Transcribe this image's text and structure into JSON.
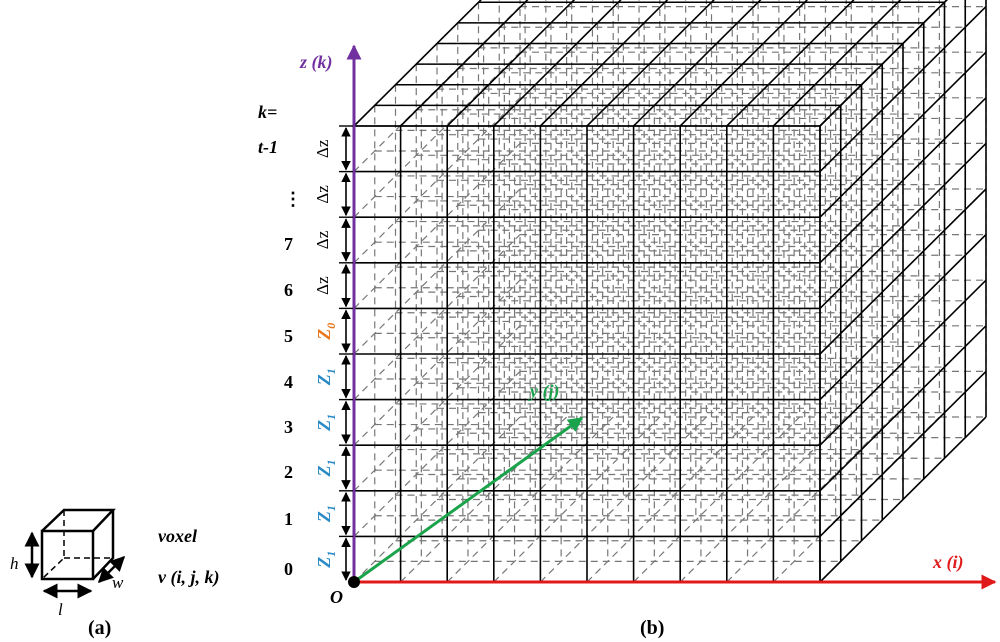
{
  "axes": {
    "z": {
      "label": "z (k)",
      "color": "#7030a0"
    },
    "y": {
      "label": "y (j)",
      "color": "#1ba34b"
    },
    "x": {
      "label": "x (i)",
      "color": "#e01a1a"
    },
    "origin": "O"
  },
  "k_header": "k=",
  "k_labels": [
    "t-1",
    "⋮",
    "7",
    "6",
    "5",
    "4",
    "3",
    "2",
    "1",
    "0"
  ],
  "dz_labels": [
    "Δz",
    "Δz",
    "Δz",
    "Δz"
  ],
  "z0_label": {
    "text": "Z",
    "sub": "0",
    "color": "#e8761c"
  },
  "z1_label": {
    "text": "Z",
    "sub": "1",
    "color": "#2a8ac6"
  },
  "voxel": {
    "title": "voxel",
    "formula": "v (i, j, k)",
    "dims": {
      "h": "h",
      "l": "l",
      "w": "w"
    }
  },
  "captions": {
    "a": "(a)",
    "b": "(b)"
  }
}
